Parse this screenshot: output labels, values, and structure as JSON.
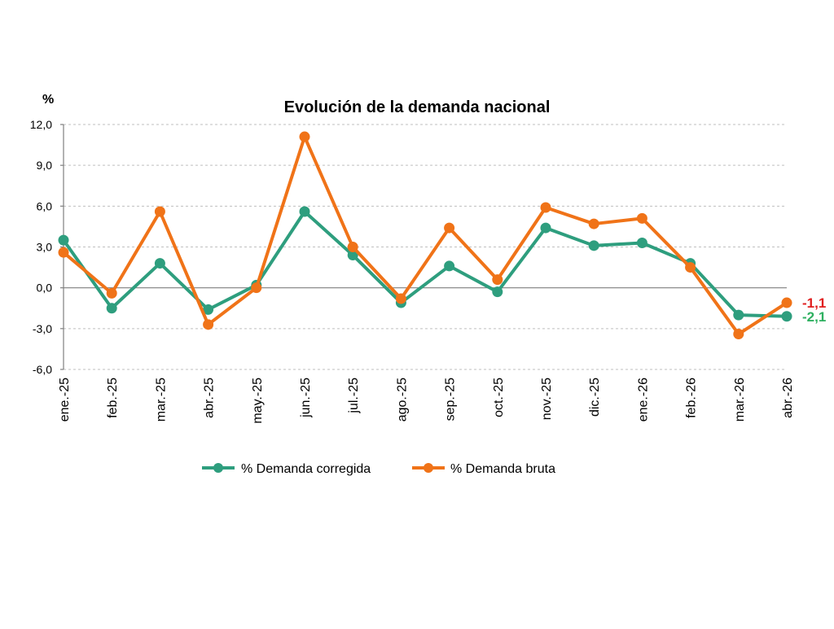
{
  "chart_data": {
    "type": "line",
    "title": "Evolución de la demanda nacional",
    "ylabel": "%",
    "xlabel": "",
    "ylim": [
      -6,
      12
    ],
    "yticks": [
      "12,0",
      "9,0",
      "6,0",
      "3,0",
      "0,0",
      "-3,0",
      "-6,0"
    ],
    "ytick_values": [
      12,
      9,
      6,
      3,
      0,
      -3,
      -6
    ],
    "categories": [
      "ene.-25",
      "feb.-25",
      "mar.-25",
      "abr.-25",
      "may.-25",
      "jun.-25",
      "jul.-25",
      "ago.-25",
      "sep.-25",
      "oct.-25",
      "nov.-25",
      "dic.-25",
      "ene.-26",
      "feb.-26",
      "mar.-26",
      "abr.-26"
    ],
    "series": [
      {
        "name": "% Demanda corregida",
        "color": "#2e9e7e",
        "values": [
          3.5,
          -1.5,
          1.8,
          -1.6,
          0.2,
          5.6,
          2.4,
          -1.1,
          1.6,
          -0.3,
          4.4,
          3.1,
          3.3,
          1.8,
          -2.0,
          -2.1
        ],
        "end_label": "-2,1",
        "end_label_color": "#2eb060"
      },
      {
        "name": "% Demanda bruta",
        "color": "#f07318",
        "values": [
          2.6,
          -0.4,
          5.6,
          -2.7,
          0.0,
          11.1,
          3.0,
          -0.8,
          4.4,
          0.6,
          5.9,
          4.7,
          5.1,
          1.5,
          -3.4,
          -1.1
        ],
        "end_label": "-1,1",
        "end_label_color": "#e02020"
      }
    ],
    "grid": true,
    "legend_position": "bottom"
  }
}
